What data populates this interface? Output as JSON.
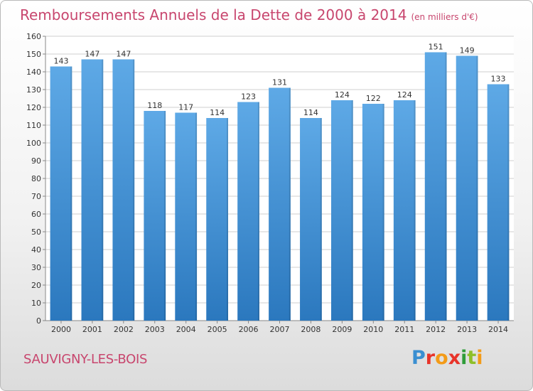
{
  "title": "Remboursements Annuels de la Dette de 2000 à 2014",
  "title_unit": "(en milliers d'€)",
  "commune": "SAUVIGNY-LES-BOIS",
  "logo_text": "Proxiti",
  "colors": {
    "title": "#c8466e",
    "bar": "#3d8fd6",
    "bar_light": "#5aa8e8",
    "bar_dark": "#2a78bf",
    "grid": "#cfcfcf"
  },
  "chart_data": {
    "type": "bar",
    "title": "Remboursements Annuels de la Dette de 2000 à 2014",
    "subtitle": "(en milliers d'€)",
    "xlabel": "",
    "ylabel": "",
    "categories": [
      "2000",
      "2001",
      "2002",
      "2003",
      "2004",
      "2005",
      "2006",
      "2007",
      "2008",
      "2009",
      "2010",
      "2011",
      "2012",
      "2013",
      "2014"
    ],
    "values": [
      143,
      147,
      147,
      118,
      117,
      114,
      123,
      131,
      114,
      124,
      122,
      124,
      151,
      149,
      133
    ],
    "ylim": [
      0,
      160
    ],
    "yticks": [
      0,
      10,
      20,
      30,
      40,
      50,
      60,
      70,
      80,
      90,
      100,
      110,
      120,
      130,
      140,
      150,
      160
    ],
    "grid": true,
    "data_labels": true
  }
}
